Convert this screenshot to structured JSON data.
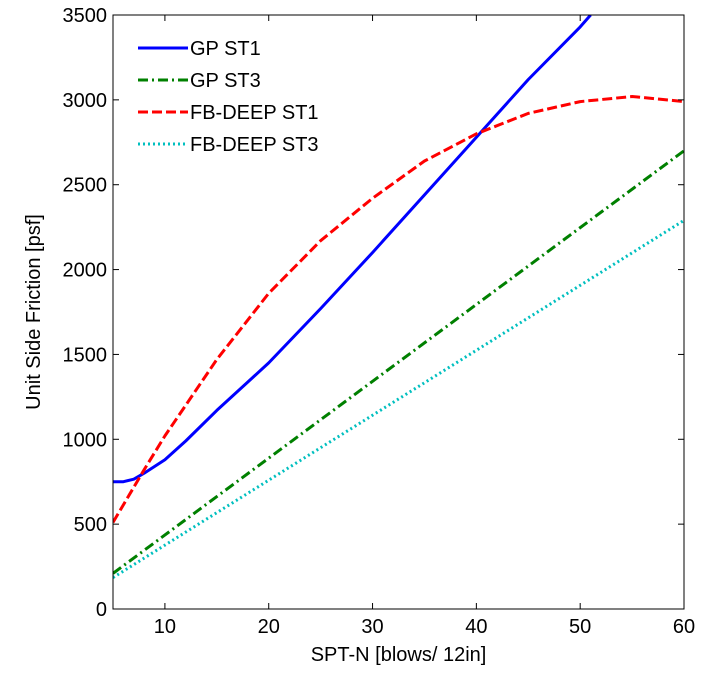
{
  "chart_data": {
    "type": "line",
    "title": "",
    "xlabel": "SPT-N [blows/ 12in]",
    "ylabel": "Unit Side Friction [psf]",
    "xlim": [
      5,
      60
    ],
    "ylim": [
      0,
      3500
    ],
    "xticks": [
      10,
      20,
      30,
      40,
      50,
      60
    ],
    "yticks": [
      0,
      500,
      1000,
      1500,
      2000,
      2500,
      3000,
      3500
    ],
    "grid": false,
    "legend_position": "top-left",
    "series": [
      {
        "name": "GP ST1",
        "color": "#0000ff",
        "style": "solid",
        "x": [
          5,
          6,
          7,
          8,
          10,
          12,
          15,
          20,
          25,
          30,
          35,
          40,
          45,
          50,
          51
        ],
        "y": [
          750,
          750,
          765,
          800,
          880,
          990,
          1170,
          1450,
          1770,
          2100,
          2440,
          2780,
          3120,
          3430,
          3500
        ]
      },
      {
        "name": "GP ST3",
        "color": "#008000",
        "style": "dash-dot",
        "x": [
          5,
          60
        ],
        "y": [
          210,
          2700
        ]
      },
      {
        "name": "FB-DEEP ST1",
        "color": "#ff0000",
        "style": "dashed",
        "x": [
          5,
          8,
          10,
          15,
          20,
          25,
          30,
          35,
          40,
          45,
          50,
          55,
          60
        ],
        "y": [
          510,
          820,
          1020,
          1470,
          1860,
          2170,
          2420,
          2640,
          2800,
          2920,
          2990,
          3020,
          2990
        ]
      },
      {
        "name": "FB-DEEP ST3",
        "color": "#00bfbf",
        "style": "dotted",
        "x": [
          5,
          60
        ],
        "y": [
          185,
          2290
        ]
      }
    ]
  }
}
